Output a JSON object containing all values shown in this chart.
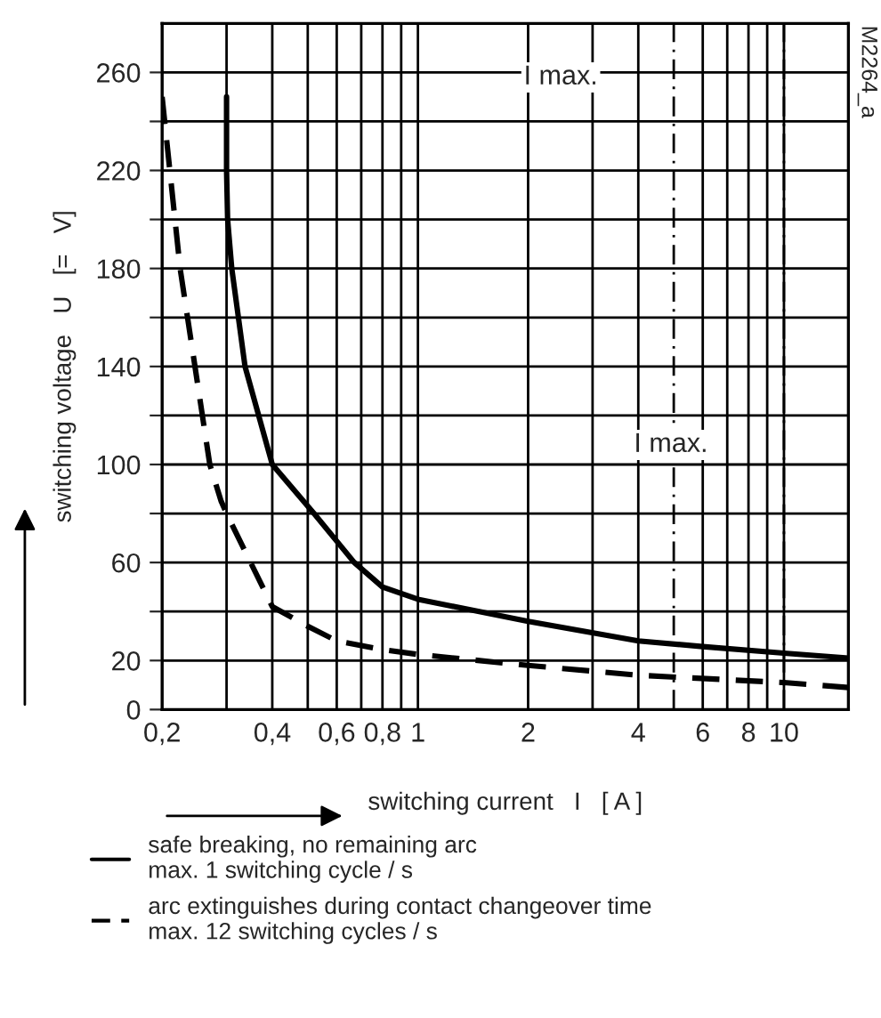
{
  "chart_data": {
    "type": "line",
    "xlabel": "switching current   I   [ A ]",
    "ylabel": "switching voltage   U   [=   V]",
    "log": "x",
    "xlim": [
      0.2,
      15
    ],
    "ylim": [
      0,
      280
    ],
    "xticks": [
      {
        "value": 0.2,
        "label": "0,2"
      },
      {
        "value": 0.3,
        "label": null
      },
      {
        "value": 0.4,
        "label": "0,4"
      },
      {
        "value": 0.5,
        "label": null
      },
      {
        "value": 0.6,
        "label": "0,6"
      },
      {
        "value": 0.7,
        "label": null
      },
      {
        "value": 0.8,
        "label": "0,8"
      },
      {
        "value": 0.9,
        "label": null
      },
      1,
      2,
      {
        "value": 3,
        "label": null
      },
      4,
      6,
      {
        "value": 7,
        "label": null
      },
      8,
      {
        "value": 9,
        "label": null
      },
      10
    ],
    "yticks": [
      0,
      20,
      {
        "value": 40,
        "label": null
      },
      60,
      {
        "value": 80,
        "label": null
      },
      100,
      {
        "value": 120,
        "label": null
      },
      140,
      {
        "value": 160,
        "label": null
      },
      180,
      {
        "value": 200,
        "label": null
      },
      220,
      {
        "value": 240,
        "label": null
      },
      260
    ],
    "grid": true,
    "legend": "bottom",
    "series": [
      {
        "name": "safe breaking, no remaining arc\nmax. 1 switching cycle / s",
        "color": "#000000",
        "line_style": "solid",
        "x": [
          0.3,
          0.3,
          0.302,
          0.31,
          0.337,
          0.4,
          0.52,
          0.67,
          0.8,
          1,
          2,
          4,
          6,
          10,
          15
        ],
        "values": [
          250,
          220,
          200,
          180,
          140,
          100,
          80,
          60,
          50,
          45,
          36,
          28,
          25.7,
          23,
          21
        ]
      },
      {
        "name": "arc extinguishes during contact changeover time\nmax. 12 switching cycles / s",
        "color": "#000000",
        "line_style": "dashed",
        "x": [
          0.2,
          0.224,
          0.27,
          0.29,
          0.3,
          0.4,
          0.5,
          0.6,
          0.8,
          1,
          2,
          4,
          10,
          15
        ],
        "values": [
          250,
          180,
          100,
          85,
          80,
          42,
          34,
          28,
          24.5,
          22.5,
          18,
          14,
          11,
          9
        ]
      }
    ],
    "ref_lines": [
      {
        "axis": "x",
        "value": 5,
        "label": "I max.",
        "line_style": "dashdot",
        "color": "#000000"
      },
      {
        "axis": "x",
        "value": 10,
        "label": "I max.",
        "line_style": "dashdot",
        "color": "#000000"
      }
    ],
    "annotations": [
      "M2264_a"
    ]
  }
}
